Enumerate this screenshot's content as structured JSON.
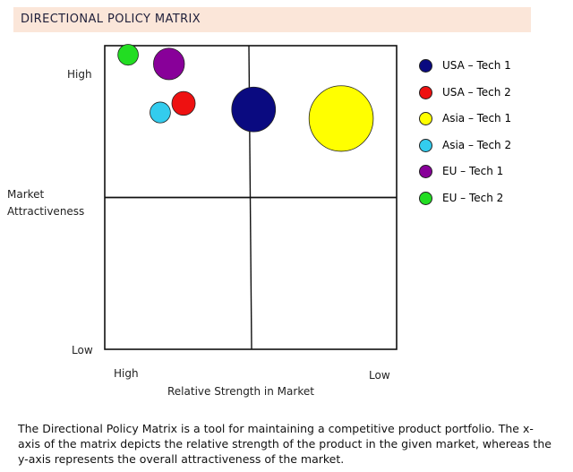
{
  "chart_data": {
    "type": "scatter",
    "title": "DIRECTIONAL POLICY MATRIX",
    "xlabel": "Relative Strength in Market",
    "ylabel": [
      "Market",
      "Attractiveness"
    ],
    "x_tick_labels": [
      "High",
      "Low"
    ],
    "y_tick_labels": [
      "High",
      "Low"
    ],
    "xlim": [
      0,
      1
    ],
    "ylim": [
      0,
      1
    ],
    "x_reversed": true,
    "quadrant_divider_x": 0.5,
    "quadrant_divider_y": 0.5,
    "series": [
      {
        "name": "USA – Tech 1",
        "color": "#0a0a80",
        "x": 0.49,
        "y": 0.79,
        "size": 0.075
      },
      {
        "name": "USA – Tech 2",
        "color": "#ee1111",
        "x": 0.73,
        "y": 0.81,
        "size": 0.04
      },
      {
        "name": "Asia – Tech 1",
        "color": "#ffff00",
        "x": 0.19,
        "y": 0.76,
        "size": 0.11
      },
      {
        "name": "Asia – Tech 2",
        "color": "#33ccee",
        "x": 0.81,
        "y": 0.78,
        "size": 0.035
      },
      {
        "name": "EU – Tech 1",
        "color": "#880099",
        "x": 0.78,
        "y": 0.94,
        "size": 0.053
      },
      {
        "name": "EU – Tech 2",
        "color": "#22dd22",
        "x": 0.92,
        "y": 0.97,
        "size": 0.035
      }
    ]
  },
  "caption": "The Directional Policy Matrix is a tool for maintaining a competitive product portfolio. The x-axis of the matrix depicts the relative strength of the product in the given market, whereas the y-axis represents the overall attractiveness of the market."
}
